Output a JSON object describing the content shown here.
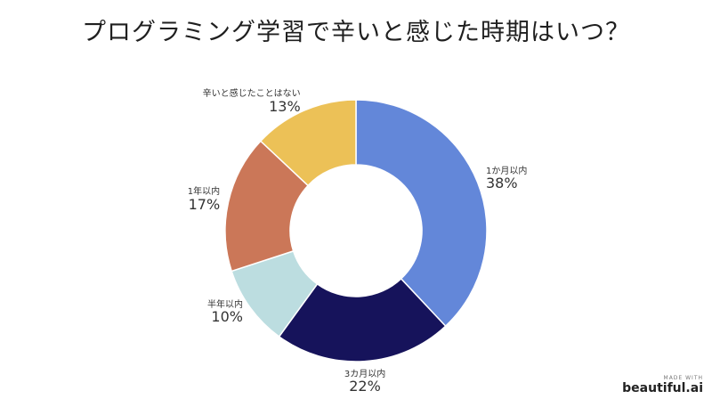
{
  "chart_data": {
    "type": "pie",
    "title": "プログラミング学習で辛いと感じた時期はいつ？",
    "donut": true,
    "slices": [
      {
        "label": "1か月以内",
        "value": 38,
        "display": "38%",
        "color": "#6387d9"
      },
      {
        "label": "3カ月以内",
        "value": 22,
        "display": "22%",
        "color": "#16135b"
      },
      {
        "label": "半年以内",
        "value": 10,
        "display": "10%",
        "color": "#bcdde0"
      },
      {
        "label": "1年以内",
        "value": 17,
        "display": "17%",
        "color": "#cb7758"
      },
      {
        "label": "辛いと感じたことはない",
        "value": 13,
        "display": "13%",
        "color": "#ecc157"
      }
    ]
  },
  "brand": {
    "made_with": "MADE WITH",
    "name": "beautiful.ai"
  }
}
